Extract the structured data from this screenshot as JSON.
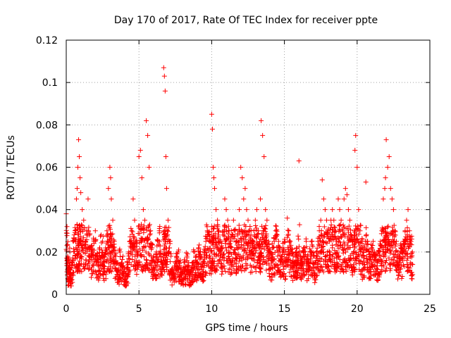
{
  "chart_data": {
    "type": "scatter",
    "title": "Day 170 of 2017, Rate Of TEC Index for receiver ppte",
    "xlabel": "GPS time / hours",
    "ylabel": "ROTI / TECUs",
    "xlim": [
      0,
      25
    ],
    "ylim": [
      0,
      0.12
    ],
    "xticks": [
      0,
      5,
      10,
      15,
      20,
      25
    ],
    "xtick_labels": [
      "0",
      "5",
      "10",
      "15",
      "20",
      "25"
    ],
    "yticks": [
      0,
      0.02,
      0.04,
      0.06,
      0.08,
      0.1,
      0.12
    ],
    "ytick_labels": [
      "0",
      "0.02",
      "0.04",
      "0.06",
      "0.08",
      "0.1",
      "0.12"
    ],
    "grid": true,
    "marker": "+",
    "color": "#ff0000",
    "series": [
      {
        "name": "ROTI",
        "x": [
          0.0,
          0.05,
          0.1,
          0.15,
          0.2,
          0.25,
          0.3,
          0.4,
          0.5,
          0.6,
          0.7,
          0.75,
          0.8,
          0.85,
          0.9,
          0.95,
          1.0,
          1.1,
          1.2,
          1.3,
          1.4,
          1.5,
          1.6,
          1.7,
          1.8,
          1.9,
          2.0,
          2.1,
          2.2,
          2.3,
          2.4,
          2.5,
          2.6,
          2.7,
          2.8,
          2.9,
          3.0,
          3.05,
          3.1,
          3.2,
          3.3,
          3.4,
          3.5,
          3.6,
          3.7,
          3.8,
          3.9,
          4.0,
          4.1,
          4.2,
          4.3,
          4.4,
          4.5,
          4.6,
          4.7,
          4.8,
          4.9,
          5.0,
          5.1,
          5.2,
          5.3,
          5.4,
          5.5,
          5.6,
          5.7,
          5.8,
          5.9,
          6.0,
          6.1,
          6.2,
          6.3,
          6.4,
          6.5,
          6.6,
          6.7,
          6.75,
          6.8,
          6.85,
          6.9,
          7.0,
          7.1,
          7.2,
          7.3,
          7.4,
          7.5,
          7.6,
          7.7,
          7.8,
          7.9,
          8.0,
          8.1,
          8.2,
          8.3,
          8.4,
          8.5,
          8.6,
          8.7,
          8.8,
          8.9,
          9.0,
          9.1,
          9.2,
          9.3,
          9.4,
          9.5,
          9.6,
          9.7,
          9.8,
          9.9,
          10.0,
          10.05,
          10.1,
          10.15,
          10.2,
          10.3,
          10.4,
          10.5,
          10.6,
          10.7,
          10.8,
          10.9,
          11.0,
          11.1,
          11.2,
          11.3,
          11.4,
          11.5,
          11.6,
          11.7,
          11.8,
          11.9,
          12.0,
          12.1,
          12.2,
          12.3,
          12.4,
          12.5,
          12.6,
          12.7,
          12.8,
          12.9,
          13.0,
          13.1,
          13.2,
          13.3,
          13.35,
          13.4,
          13.5,
          13.6,
          13.7,
          13.8,
          13.9,
          14.0,
          14.1,
          14.2,
          14.3,
          14.4,
          14.5,
          14.6,
          14.7,
          14.8,
          14.9,
          15.0,
          15.1,
          15.2,
          15.3,
          15.4,
          15.5,
          15.6,
          15.7,
          15.8,
          15.85,
          15.9,
          16.0,
          16.1,
          16.2,
          16.3,
          16.4,
          16.5,
          16.6,
          16.7,
          16.8,
          16.9,
          17.0,
          17.1,
          17.2,
          17.3,
          17.4,
          17.5,
          17.6,
          17.7,
          17.8,
          17.9,
          18.0,
          18.1,
          18.2,
          18.3,
          18.4,
          18.5,
          18.6,
          18.7,
          18.8,
          18.9,
          19.0,
          19.1,
          19.2,
          19.3,
          19.4,
          19.5,
          19.6,
          19.7,
          19.8,
          19.85,
          19.9,
          20.0,
          20.1,
          20.2,
          20.3,
          20.4,
          20.5,
          20.6,
          20.7,
          20.8,
          20.9,
          21.0,
          21.1,
          21.2,
          21.3,
          21.4,
          21.5,
          21.6,
          21.7,
          21.8,
          21.9,
          21.95,
          22.0,
          22.1,
          22.2,
          22.3,
          22.4,
          22.5,
          22.6,
          22.7,
          22.8,
          22.9,
          23.0,
          23.1,
          23.2,
          23.3,
          23.4,
          23.5,
          23.6,
          23.7,
          23.8
        ],
        "y": [
          0.038,
          0.032,
          0.018,
          0.012,
          0.015,
          0.02,
          0.01,
          0.015,
          0.025,
          0.03,
          0.045,
          0.05,
          0.06,
          0.073,
          0.065,
          0.055,
          0.048,
          0.04,
          0.035,
          0.025,
          0.03,
          0.045,
          0.028,
          0.022,
          0.02,
          0.025,
          0.03,
          0.018,
          0.015,
          0.022,
          0.028,
          0.025,
          0.018,
          0.02,
          0.03,
          0.05,
          0.06,
          0.055,
          0.045,
          0.035,
          0.025,
          0.018,
          0.015,
          0.012,
          0.02,
          0.015,
          0.018,
          0.012,
          0.01,
          0.015,
          0.02,
          0.025,
          0.03,
          0.045,
          0.035,
          0.025,
          0.018,
          0.065,
          0.068,
          0.055,
          0.04,
          0.035,
          0.082,
          0.075,
          0.06,
          0.03,
          0.022,
          0.018,
          0.015,
          0.02,
          0.025,
          0.03,
          0.018,
          0.015,
          0.107,
          0.103,
          0.096,
          0.065,
          0.05,
          0.035,
          0.025,
          0.018,
          0.012,
          0.01,
          0.015,
          0.018,
          0.02,
          0.015,
          0.012,
          0.01,
          0.015,
          0.012,
          0.018,
          0.015,
          0.01,
          0.012,
          0.015,
          0.02,
          0.018,
          0.015,
          0.022,
          0.02,
          0.018,
          0.015,
          0.02,
          0.025,
          0.03,
          0.028,
          0.025,
          0.085,
          0.078,
          0.06,
          0.055,
          0.05,
          0.04,
          0.035,
          0.03,
          0.025,
          0.022,
          0.028,
          0.045,
          0.04,
          0.035,
          0.03,
          0.025,
          0.028,
          0.035,
          0.03,
          0.025,
          0.028,
          0.04,
          0.06,
          0.055,
          0.045,
          0.05,
          0.04,
          0.035,
          0.03,
          0.028,
          0.025,
          0.03,
          0.035,
          0.04,
          0.03,
          0.025,
          0.045,
          0.082,
          0.075,
          0.065,
          0.04,
          0.035,
          0.025,
          0.02,
          0.018,
          0.022,
          0.025,
          0.03,
          0.028,
          0.025,
          0.02,
          0.018,
          0.022,
          0.025,
          0.02,
          0.036,
          0.03,
          0.025,
          0.02,
          0.018,
          0.015,
          0.02,
          0.018,
          0.015,
          0.063,
          0.018,
          0.015,
          0.02,
          0.022,
          0.025,
          0.018,
          0.015,
          0.02,
          0.025,
          0.018,
          0.015,
          0.02,
          0.025,
          0.03,
          0.035,
          0.054,
          0.045,
          0.04,
          0.035,
          0.03,
          0.025,
          0.035,
          0.04,
          0.035,
          0.03,
          0.025,
          0.045,
          0.04,
          0.035,
          0.03,
          0.045,
          0.05,
          0.047,
          0.04,
          0.035,
          0.028,
          0.025,
          0.03,
          0.068,
          0.075,
          0.06,
          0.04,
          0.03,
          0.025,
          0.02,
          0.022,
          0.053,
          0.025,
          0.02,
          0.018,
          0.022,
          0.025,
          0.02,
          0.018,
          0.015,
          0.02,
          0.025,
          0.03,
          0.045,
          0.05,
          0.055,
          0.073,
          0.06,
          0.065,
          0.05,
          0.045,
          0.04,
          0.03,
          0.025,
          0.02,
          0.018,
          0.022,
          0.02,
          0.025,
          0.03,
          0.035,
          0.04,
          0.03,
          0.025,
          0.02
        ]
      }
    ]
  }
}
